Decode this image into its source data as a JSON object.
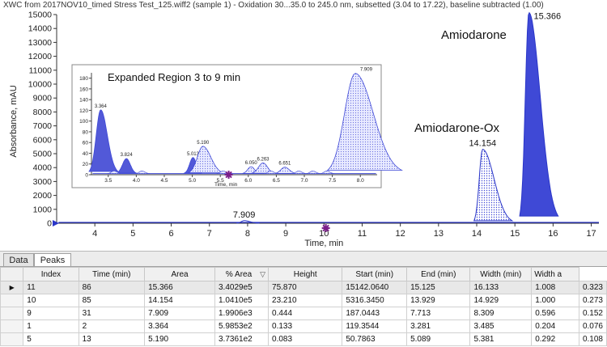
{
  "chart_data": [
    {
      "type": "line",
      "title": "XWC from 2017NOV10_timed Stress Test_125.wiff2 (sample 1) - Oxidation 30...35.0 to 245.0 nm, subsetted (3.04 to 17.22), baseline subtracted (1.00)",
      "xlabel": "Time, min",
      "ylabel": "Absorbance, mAU",
      "xlim": [
        3.0,
        17.2
      ],
      "ylim": [
        0,
        15000
      ],
      "xticks": [
        4,
        5,
        6,
        7,
        8,
        9,
        10,
        11,
        12,
        13,
        14,
        15,
        16,
        17
      ],
      "yticks": [
        0,
        1000,
        2000,
        3000,
        4000,
        5000,
        6000,
        7000,
        8000,
        9000,
        10000,
        11000,
        12000,
        13000,
        14000,
        15000
      ],
      "peaks": [
        {
          "rt": 14.154,
          "height": 5316,
          "start": 13.929,
          "end": 14.929,
          "label": "14.154",
          "fill": "dotted"
        },
        {
          "rt": 15.366,
          "height": 15142,
          "start": 15.125,
          "end": 16.133,
          "label": "15.366",
          "fill": "solid"
        },
        {
          "rt": 7.909,
          "height": 187,
          "start": 7.713,
          "end": 8.309,
          "label": "7.909",
          "fill": "none"
        }
      ],
      "annotations": [
        "Amiodarone",
        "Amiodarone-Ox"
      ]
    },
    {
      "type": "line",
      "title": "Expanded Region 3 to 9 min",
      "xlabel": "Time, min",
      "xlim": [
        3.2,
        8.3
      ],
      "ylim": [
        0,
        190
      ],
      "xticks": [
        3.5,
        4.0,
        4.5,
        5.0,
        5.5,
        6.0,
        6.5,
        7.0,
        7.5,
        8.0
      ],
      "yticks": [
        0,
        20,
        40,
        60,
        80,
        100,
        120,
        140,
        160,
        180
      ],
      "peaks": [
        {
          "rt": 3.364,
          "height": 119,
          "label": "3.364"
        },
        {
          "rt": 3.824,
          "height": 28,
          "label": "3.824"
        },
        {
          "rt": 5.013,
          "height": 30,
          "label": "5.013"
        },
        {
          "rt": 5.19,
          "height": 51,
          "label": "5.190"
        },
        {
          "rt": 6.05,
          "height": 13,
          "label": "6.050"
        },
        {
          "rt": 6.263,
          "height": 20,
          "label": "6.263"
        },
        {
          "rt": 6.651,
          "height": 12,
          "label": "6.651"
        },
        {
          "rt": 7.909,
          "height": 187,
          "label": "7.909"
        }
      ]
    }
  ],
  "labels": {
    "amiodarone": "Amiodarone",
    "amiodarone_ox": "Amiodarone-Ox",
    "inset_title": "Expanded Region 3 to 9 min"
  },
  "tabs": [
    {
      "label": "Data",
      "active": false
    },
    {
      "label": "Peaks",
      "active": true
    }
  ],
  "table": {
    "columns": [
      "",
      "Index",
      "Time (min)",
      "Area",
      "% Area",
      "Height",
      "Start (min)",
      "End (min)",
      "Width (min)",
      "Width a"
    ],
    "sort_indicator": "▽",
    "rows": [
      {
        "id": "11",
        "cells": [
          "86",
          "15.366",
          "3.4029e5",
          "75.870",
          "15142.0640",
          "15.125",
          "16.133",
          "1.008",
          "0.323"
        ],
        "selected": true
      },
      {
        "id": "10",
        "cells": [
          "85",
          "14.154",
          "1.0410e5",
          "23.210",
          "5316.3450",
          "13.929",
          "14.929",
          "1.000",
          "0.273"
        ],
        "selected": false
      },
      {
        "id": "9",
        "cells": [
          "31",
          "7.909",
          "1.9906e3",
          "0.444",
          "187.0443",
          "7.713",
          "8.309",
          "0.596",
          "0.152"
        ],
        "selected": false
      },
      {
        "id": "1",
        "cells": [
          "2",
          "3.364",
          "5.9853e2",
          "0.133",
          "119.3544",
          "3.281",
          "3.485",
          "0.204",
          "0.076"
        ],
        "selected": false
      },
      {
        "id": "5",
        "cells": [
          "13",
          "5.190",
          "3.7361e2",
          "0.083",
          "50.7863",
          "5.089",
          "5.381",
          "0.292",
          "0.108"
        ],
        "selected": false
      }
    ]
  }
}
